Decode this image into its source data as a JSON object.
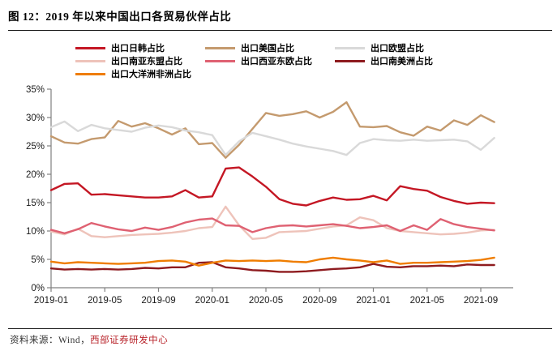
{
  "figure": {
    "title": "图 12：2019 年以来中国出口各贸易伙伴占比",
    "source_prefix": "资料来源：Wind，",
    "source_org": "西部证券研发中心"
  },
  "chart_data": {
    "type": "line",
    "title": "2019 年以来中国出口各贸易伙伴占比",
    "xlabel": "",
    "ylabel": "",
    "ylim": [
      0,
      35
    ],
    "y_tick_labels": [
      "0%",
      "5%",
      "10%",
      "15%",
      "20%",
      "25%",
      "30%",
      "35%"
    ],
    "grid": false,
    "legend_position": "top",
    "months": [
      "2019-01",
      "2019-02",
      "2019-03",
      "2019-04",
      "2019-05",
      "2019-06",
      "2019-07",
      "2019-08",
      "2019-09",
      "2019-10",
      "2019-11",
      "2019-12",
      "2020-01",
      "2020-02",
      "2020-03",
      "2020-04",
      "2020-05",
      "2020-06",
      "2020-07",
      "2020-08",
      "2020-09",
      "2020-10",
      "2020-11",
      "2020-12",
      "2021-01",
      "2021-02",
      "2021-03",
      "2021-04",
      "2021-05",
      "2021-06",
      "2021-07",
      "2021-08",
      "2021-09",
      "2021-10"
    ],
    "x_tick_labels": [
      "2019-01",
      "2019-05",
      "2019-09",
      "2020-01",
      "2020-05",
      "2020-09",
      "2021-01",
      "2021-05",
      "2021-09"
    ],
    "series": [
      {
        "id": "exports-japan-korea-share",
        "label": "出口日韩占比",
        "color": "#c41724",
        "values": [
          17.2,
          18.3,
          18.4,
          16.4,
          16.5,
          16.3,
          16.1,
          15.9,
          15.9,
          16.1,
          17.2,
          15.9,
          16.1,
          21.0,
          21.2,
          19.6,
          17.8,
          15.6,
          14.8,
          14.5,
          15.3,
          15.9,
          15.5,
          15.6,
          16.2,
          15.4,
          17.9,
          17.4,
          17.1,
          16.0,
          15.3,
          14.8,
          15.0,
          14.9
        ]
      },
      {
        "id": "exports-us-share",
        "label": "出口美国占比",
        "color": "#c49a6e",
        "values": [
          26.7,
          25.6,
          25.4,
          26.2,
          26.5,
          29.4,
          28.4,
          29.0,
          28.1,
          27.0,
          28.1,
          25.3,
          25.5,
          22.9,
          25.2,
          28.0,
          30.8,
          30.3,
          30.6,
          31.1,
          30.0,
          31.0,
          32.7,
          28.4,
          28.3,
          28.5,
          27.4,
          26.8,
          28.4,
          27.7,
          29.5,
          28.7,
          30.4,
          29.2
        ]
      },
      {
        "id": "exports-eu-share",
        "label": "出口欧盟占比",
        "color": "#d9d9d9",
        "values": [
          28.3,
          29.3,
          27.6,
          28.7,
          28.1,
          27.8,
          27.5,
          28.2,
          28.6,
          28.3,
          27.7,
          27.4,
          26.9,
          23.4,
          25.8,
          27.3,
          26.7,
          26.1,
          25.4,
          24.9,
          24.5,
          24.1,
          23.4,
          25.5,
          26.2,
          26.0,
          25.9,
          26.1,
          25.9,
          26.0,
          26.1,
          25.8,
          24.3,
          26.4
        ]
      },
      {
        "id": "exports-south-asia-asean-share",
        "label": "出口南亚东盟占比",
        "color": "#eec3ba",
        "values": [
          9.9,
          9.4,
          10.4,
          9.1,
          8.9,
          9.1,
          9.3,
          9.4,
          9.5,
          9.7,
          10.0,
          10.5,
          10.7,
          14.3,
          11.0,
          8.6,
          8.8,
          9.8,
          9.9,
          10.0,
          10.4,
          10.8,
          11.0,
          12.4,
          11.9,
          10.5,
          10.0,
          9.8,
          9.6,
          9.4,
          9.5,
          9.7,
          10.1,
          10.2
        ]
      },
      {
        "id": "exports-west-asia-east-europe-share",
        "label": "出口西亚东欧占比",
        "color": "#df6172",
        "values": [
          10.2,
          9.6,
          10.3,
          11.4,
          10.8,
          10.3,
          10.0,
          10.6,
          10.2,
          10.7,
          11.5,
          12.0,
          12.2,
          11.0,
          10.9,
          9.8,
          10.5,
          10.9,
          11.0,
          10.8,
          11.0,
          11.2,
          10.9,
          10.5,
          10.7,
          11.0,
          10.0,
          11.0,
          10.2,
          12.1,
          11.2,
          10.7,
          10.4,
          10.1
        ]
      },
      {
        "id": "exports-south-america-share",
        "label": "出口南美洲占比",
        "color": "#8e1b1f",
        "values": [
          3.4,
          3.2,
          3.3,
          3.2,
          3.3,
          3.2,
          3.3,
          3.5,
          3.4,
          3.6,
          3.6,
          4.4,
          4.5,
          3.6,
          3.4,
          3.1,
          3.0,
          2.8,
          2.8,
          2.9,
          3.1,
          3.3,
          3.4,
          3.6,
          4.2,
          3.7,
          3.6,
          3.8,
          3.8,
          3.9,
          3.8,
          4.1,
          4.0,
          4.0
        ]
      },
      {
        "id": "exports-oceania-africa-share",
        "label": "出口大洋洲非洲占比",
        "color": "#ef7d00",
        "values": [
          4.6,
          4.3,
          4.5,
          4.4,
          4.3,
          4.2,
          4.3,
          4.4,
          4.7,
          4.8,
          4.6,
          3.9,
          4.4,
          4.8,
          4.7,
          4.8,
          4.7,
          4.8,
          4.6,
          4.5,
          5.0,
          5.3,
          5.0,
          4.8,
          4.5,
          4.8,
          4.2,
          4.4,
          4.4,
          4.5,
          4.6,
          4.7,
          4.9,
          5.3
        ]
      }
    ]
  }
}
